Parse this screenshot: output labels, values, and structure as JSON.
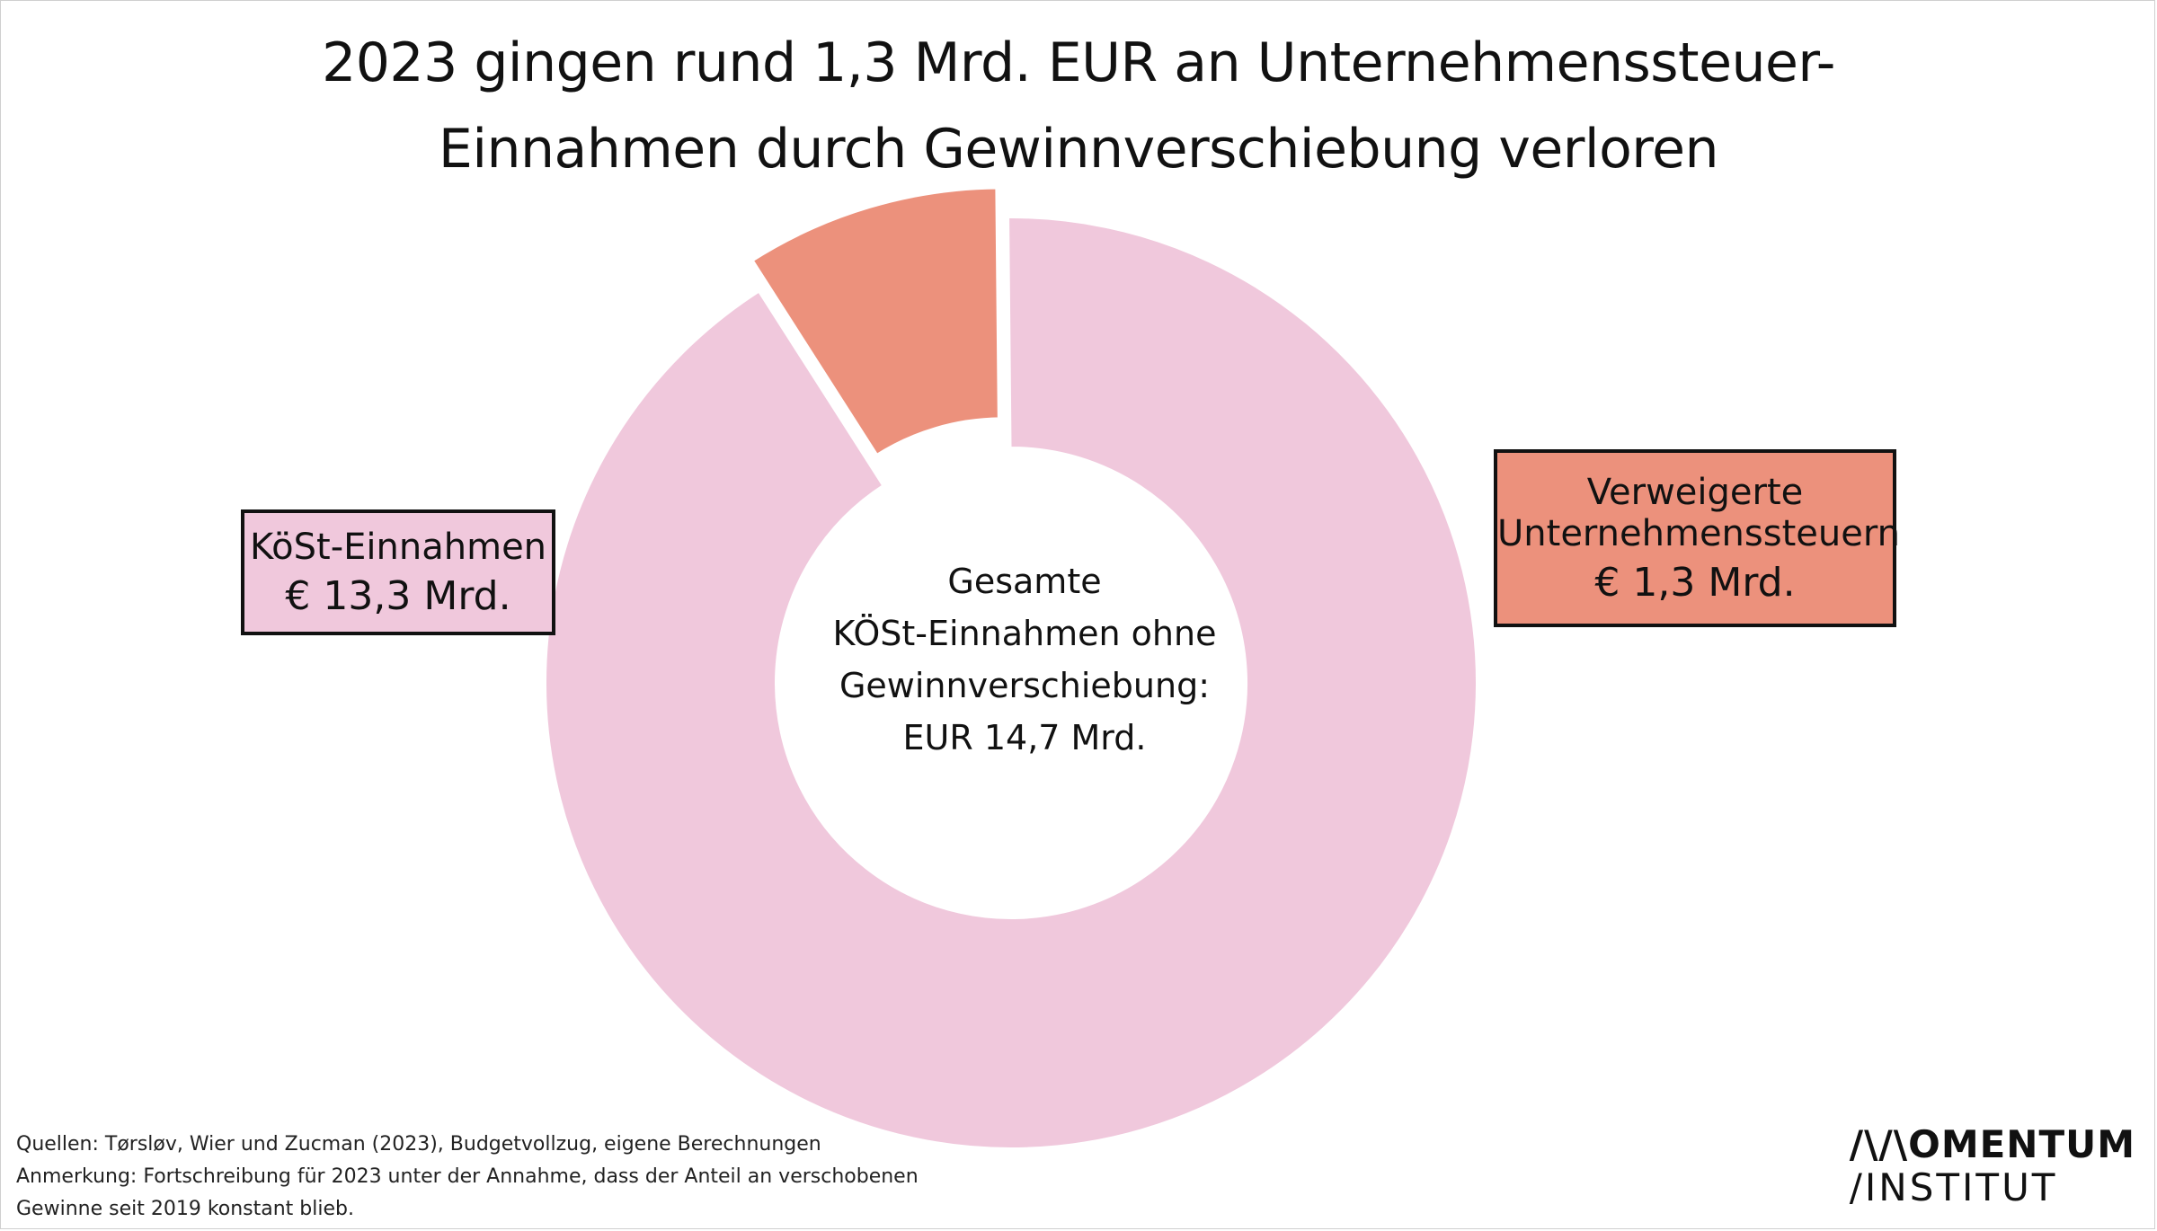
{
  "title_line1": "2023 gingen rund 1,3  Mrd. EUR an Unternehmenssteuer-",
  "title_line2": "Einnahmen durch Gewinnverschiebung verloren",
  "center_label": {
    "line1": "Gesamte",
    "line2": "KÖSt-Einnahmen ohne",
    "line3": "Gewinnverschiebung:",
    "line4": "EUR 14,7 Mrd."
  },
  "labels": {
    "left": {
      "line1": "KöSt-Einnahmen",
      "line2": "€ 13,3 Mrd."
    },
    "right": {
      "line1": "Verweigerte",
      "line2": "Unternehmenssteuern",
      "line3": "€ 1,3 Mrd."
    }
  },
  "chart_data": {
    "type": "pie",
    "variant": "donut",
    "unit": "Mrd. EUR",
    "total": 14.7,
    "slices": [
      {
        "name": "KöSt-Einnahmen",
        "value": 13.3,
        "color": "#f0c8dc"
      },
      {
        "name": "Verweigerte Unternehmenssteuern",
        "value": 1.3,
        "color": "#ec917c"
      }
    ]
  },
  "footnote": {
    "line1": "Quellen: Tørsløv, Wier und Zucman (2023),  Budgetvollzug, eigene Berechnungen",
    "line2": "Anmerkung:  Fortschreibung für 2023 unter der Annahme, dass der Anteil an verschobenen",
    "line3": "Gewinne  seit 2019 konstant blieb."
  },
  "logo": {
    "line1": "/\\/\\OMENTUM",
    "line2": "/INSTITUT"
  }
}
